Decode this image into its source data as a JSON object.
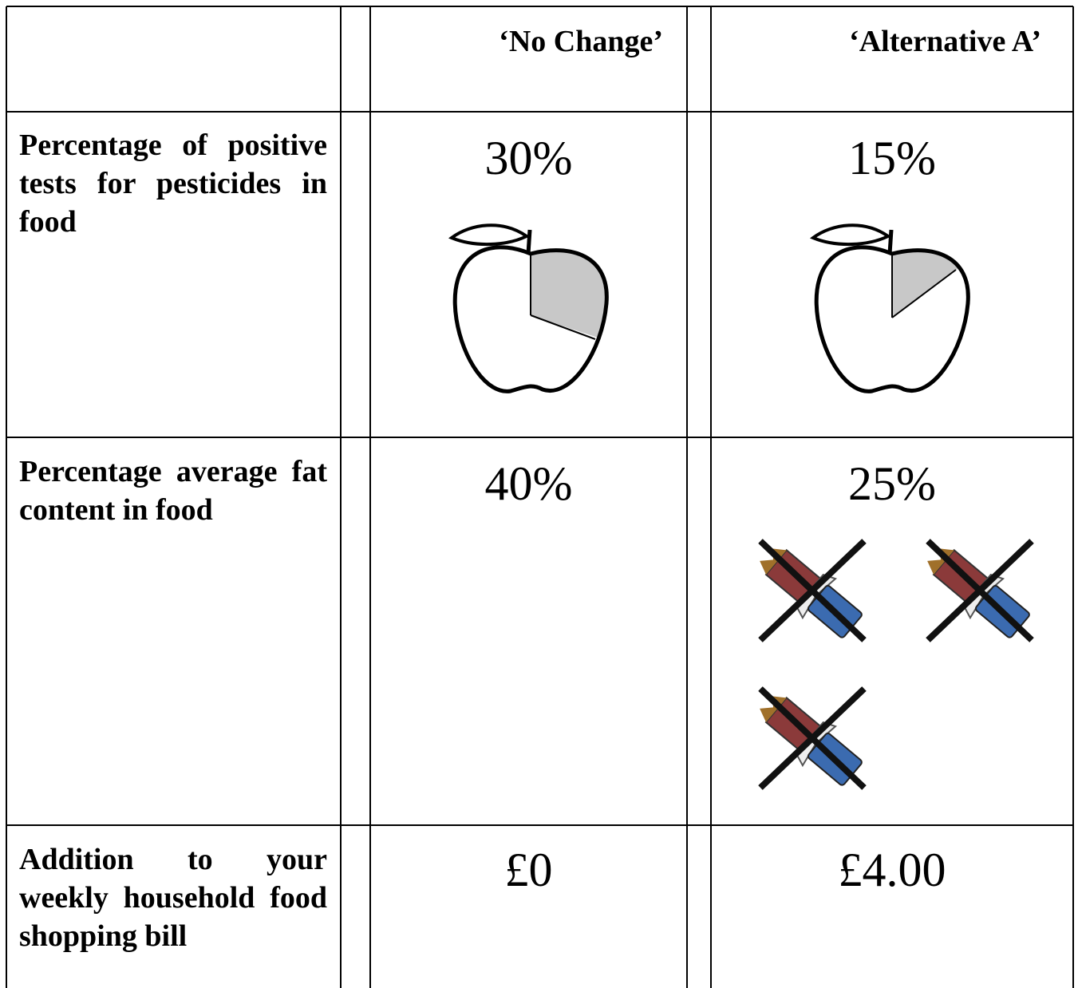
{
  "table": {
    "headers": [
      "‘No Change’",
      "‘Alternative A’"
    ],
    "rows": [
      {
        "label": "Percentage of positive tests for pesticides in food",
        "values": [
          "30%",
          "15%"
        ]
      },
      {
        "label": "Percentage average fat content in food",
        "values": [
          "40%",
          "25%"
        ]
      },
      {
        "label": "Addition to your weekly household food shopping bill",
        "values": [
          "£0",
          "£4.00"
        ]
      }
    ]
  }
}
